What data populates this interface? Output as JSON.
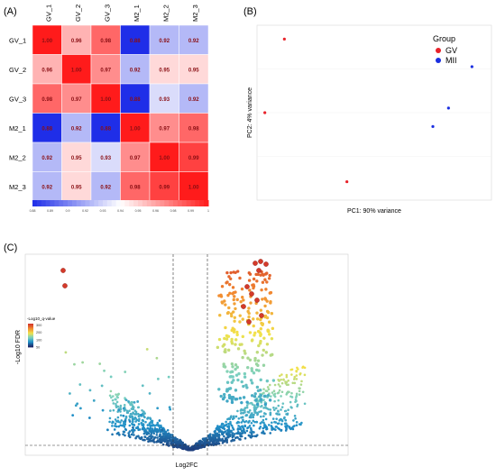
{
  "panels": {
    "a": {
      "letter": "(A)"
    },
    "b": {
      "letter": "(B)"
    },
    "c": {
      "letter": "(C)"
    }
  },
  "chart_data": [
    {
      "type": "heatmap",
      "labels": [
        "GV_1",
        "GV_2",
        "GV_3",
        "M2_1",
        "M2_2",
        "M2_3"
      ],
      "matrix": [
        [
          1.0,
          0.96,
          0.98,
          0.88,
          0.92,
          0.92
        ],
        [
          0.96,
          1.0,
          0.97,
          0.92,
          0.95,
          0.95
        ],
        [
          0.98,
          0.97,
          1.0,
          0.88,
          0.93,
          0.92
        ],
        [
          0.88,
          0.92,
          0.88,
          1.0,
          0.97,
          0.98
        ],
        [
          0.92,
          0.95,
          0.93,
          0.97,
          1.0,
          0.99
        ],
        [
          0.92,
          0.95,
          0.92,
          0.98,
          0.99,
          1.0
        ]
      ],
      "colorbar_ticks": [
        "0.88",
        "0.89",
        "0.9",
        "0.92",
        "0.93",
        "0.94",
        "0.95",
        "0.96",
        "0.98",
        "0.99",
        "1"
      ],
      "colors": {
        "low": "#1f2ee8",
        "mid": "#ffffff",
        "high": "#ff1b1b"
      },
      "range": [
        0.88,
        1.0
      ]
    },
    {
      "type": "scatter",
      "xlabel": "PC1: 90% variance",
      "ylabel": "PC2: 4% variance",
      "legend": {
        "title": "Group",
        "entries": [
          "GV",
          "MII"
        ],
        "placement": "top-right"
      },
      "colors": {
        "GV": "#e8222a",
        "MII": "#1a2ee0"
      },
      "xlim": [
        -32,
        28
      ],
      "ylim": [
        -18,
        20
      ],
      "points": [
        {
          "group": "GV",
          "x": -25,
          "y": 17
        },
        {
          "group": "GV",
          "x": -30,
          "y": 1
        },
        {
          "group": "GV",
          "x": -9,
          "y": -14
        },
        {
          "group": "MII",
          "x": 23,
          "y": 11
        },
        {
          "group": "MII",
          "x": 17,
          "y": 2
        },
        {
          "group": "MII",
          "x": 13,
          "y": -2
        }
      ]
    },
    {
      "type": "scatter",
      "subtype": "volcano",
      "xlabel": "Log2FC",
      "ylabel": "-Log10 FDR",
      "legend": {
        "title": "-Log10_q-value",
        "ticks": [
          "300",
          "200",
          "100",
          "50"
        ],
        "placement": "top-left"
      },
      "colormap": [
        "#1e2a6a",
        "#1f8fc8",
        "#7ad0c0",
        "#f2e34a",
        "#f28b30",
        "#d43a2a"
      ],
      "threshold_lines": {
        "x": [
          -1,
          1
        ],
        "y": 1.3
      }
    }
  ]
}
